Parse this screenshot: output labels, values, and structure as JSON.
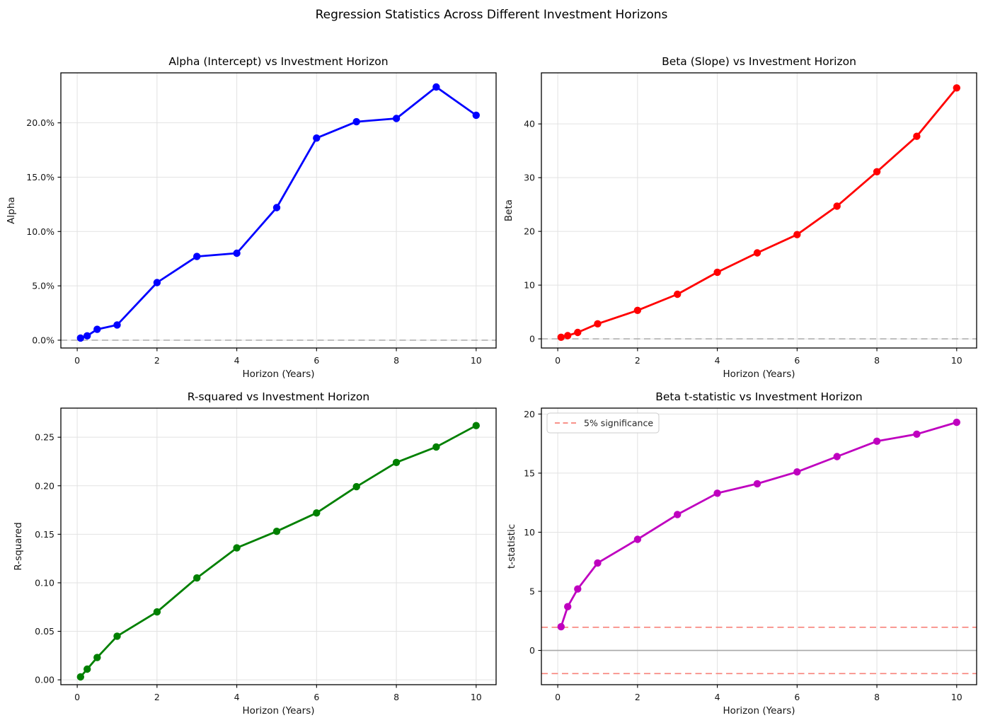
{
  "figure": {
    "title": "Regression Statistics Across Different Investment Horizons",
    "background": "#ffffff"
  },
  "chart_data": [
    {
      "id": "alpha",
      "type": "line",
      "title": "Alpha (Intercept) vs Investment Horizon",
      "xlabel": "Horizon (Years)",
      "ylabel": "Alpha",
      "series_name": "Alpha (Intercept)",
      "color": "#0000ff",
      "marker": "circle",
      "x": [
        0.083,
        0.25,
        0.5,
        1,
        2,
        3,
        4,
        5,
        6,
        7,
        8,
        9,
        10
      ],
      "y": [
        0.2,
        0.4,
        1.0,
        1.4,
        5.3,
        7.7,
        8.0,
        12.2,
        18.6,
        20.1,
        20.4,
        23.3,
        20.7
      ],
      "y_units": "percent",
      "xlim": [
        -0.41,
        10.5
      ],
      "ylim": [
        -0.72,
        24.6
      ],
      "xticks": [
        0,
        2,
        4,
        6,
        8,
        10
      ],
      "xtick_labels": [
        "0",
        "2",
        "4",
        "6",
        "8",
        "10"
      ],
      "yticks": [
        0,
        5,
        10,
        15,
        20
      ],
      "ytick_labels": [
        "0.0%",
        "5.0%",
        "10.0%",
        "15.0%",
        "20.0%"
      ],
      "grid": true,
      "ref_lines": [
        {
          "name": "zero-line",
          "y": 0,
          "color": "#b0b0b0",
          "style": "dashed"
        }
      ]
    },
    {
      "id": "beta",
      "type": "line",
      "title": "Beta (Slope) vs Investment Horizon",
      "xlabel": "Horizon (Years)",
      "ylabel": "Beta",
      "series_name": "Beta (Slope)",
      "color": "#ff0000",
      "marker": "circle",
      "x": [
        0.083,
        0.25,
        0.5,
        1,
        2,
        3,
        4,
        5,
        6,
        7,
        8,
        9,
        10
      ],
      "y": [
        0.3,
        0.6,
        1.2,
        2.8,
        5.3,
        8.3,
        12.4,
        16.0,
        19.4,
        24.7,
        31.1,
        37.7,
        46.7
      ],
      "xlim": [
        -0.41,
        10.5
      ],
      "ylim": [
        -1.7,
        49.5
      ],
      "xticks": [
        0,
        2,
        4,
        6,
        8,
        10
      ],
      "xtick_labels": [
        "0",
        "2",
        "4",
        "6",
        "8",
        "10"
      ],
      "yticks": [
        0,
        10,
        20,
        30,
        40
      ],
      "ytick_labels": [
        "0",
        "10",
        "20",
        "30",
        "40"
      ],
      "grid": true,
      "ref_lines": [
        {
          "name": "zero-line",
          "y": 0,
          "color": "#b0b0b0",
          "style": "dashed"
        }
      ]
    },
    {
      "id": "r-squared",
      "type": "line",
      "title": "R-squared vs Investment Horizon",
      "xlabel": "Horizon (Years)",
      "ylabel": "R-squared",
      "series_name": "R-squared",
      "color": "#008000",
      "marker": "circle",
      "x": [
        0.083,
        0.25,
        0.5,
        1,
        2,
        3,
        4,
        5,
        6,
        7,
        8,
        9,
        10
      ],
      "y": [
        0.003,
        0.011,
        0.023,
        0.045,
        0.07,
        0.105,
        0.136,
        0.153,
        0.172,
        0.199,
        0.224,
        0.24,
        0.262
      ],
      "xlim": [
        -0.41,
        10.5
      ],
      "ylim": [
        -0.005,
        0.28
      ],
      "xticks": [
        0,
        2,
        4,
        6,
        8,
        10
      ],
      "xtick_labels": [
        "0",
        "2",
        "4",
        "6",
        "8",
        "10"
      ],
      "yticks": [
        0.0,
        0.05,
        0.1,
        0.15,
        0.2,
        0.25
      ],
      "ytick_labels": [
        "0.00",
        "0.05",
        "0.10",
        "0.15",
        "0.20",
        "0.25"
      ],
      "grid": true,
      "ref_lines": []
    },
    {
      "id": "t-statistic",
      "type": "line",
      "title": "Beta t-statistic vs Investment Horizon",
      "xlabel": "Horizon (Years)",
      "ylabel": "t-statistic",
      "series_name": "Beta t-statistic",
      "color": "#bf00bf",
      "marker": "circle",
      "x": [
        0.083,
        0.25,
        0.5,
        1,
        2,
        3,
        4,
        5,
        6,
        7,
        8,
        9,
        10
      ],
      "y": [
        2.0,
        3.7,
        5.2,
        7.4,
        9.4,
        11.5,
        13.3,
        14.1,
        15.1,
        16.4,
        17.7,
        18.3,
        19.3
      ],
      "xlim": [
        -0.41,
        10.5
      ],
      "ylim": [
        -2.9,
        20.5
      ],
      "xticks": [
        0,
        2,
        4,
        6,
        8,
        10
      ],
      "xtick_labels": [
        "0",
        "2",
        "4",
        "6",
        "8",
        "10"
      ],
      "yticks": [
        0,
        5,
        10,
        15,
        20
      ],
      "ytick_labels": [
        "0",
        "5",
        "10",
        "15",
        "20"
      ],
      "grid": true,
      "ref_lines": [
        {
          "name": "significance-upper-line",
          "y": 1.96,
          "color": "#f8827a",
          "style": "dashed"
        },
        {
          "name": "significance-lower-line",
          "y": -1.96,
          "color": "#f8827a",
          "style": "dashed"
        },
        {
          "name": "zero-line",
          "y": 0,
          "color": "#a8a8a8",
          "style": "solid"
        }
      ],
      "legend": {
        "label": "5% significance",
        "color": "#f8827a",
        "style": "dashed",
        "position": "upper left"
      }
    }
  ]
}
